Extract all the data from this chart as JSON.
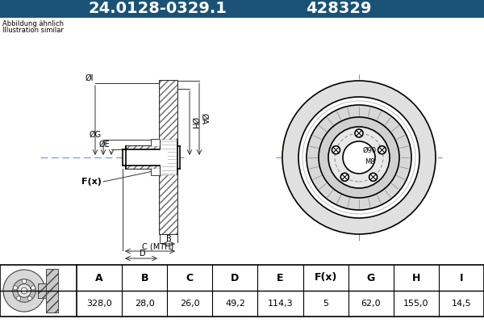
{
  "title_part_number": "24.0128-0329.1",
  "title_ref_number": "428329",
  "title_bg_color": "#1a5276",
  "title_text_color": "#ffffff",
  "subtitle_line1": "Abbildung ähnlich",
  "subtitle_line2": "Illustration similar",
  "table_headers": [
    "A",
    "B",
    "C",
    "D",
    "E",
    "F(x)",
    "G",
    "H",
    "I"
  ],
  "table_values": [
    "328,0",
    "28,0",
    "26,0",
    "49,2",
    "114,3",
    "5",
    "62,0",
    "155,0",
    "14,5"
  ],
  "label_A": "ØA",
  "label_E": "ØE",
  "label_G": "ØG",
  "label_H": "ØH",
  "label_I": "ØI",
  "label_F": "F(x)",
  "label_B": "B",
  "label_C": "C (MTH)",
  "label_D": "D",
  "label_phi90": "Ø90",
  "label_M8": "M8",
  "bg_color": "#ffffff",
  "line_color": "#000000",
  "dim_color": "#333333",
  "center_line_color": "#6699cc",
  "hatch_color": "#555555"
}
